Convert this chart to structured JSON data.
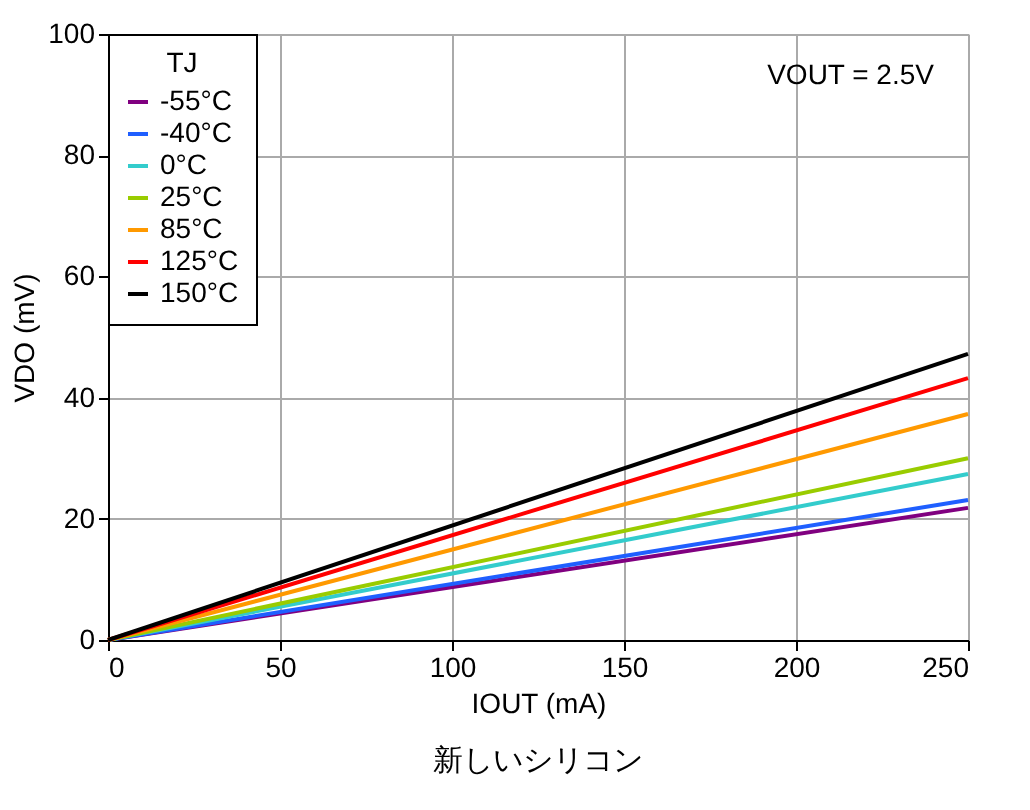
{
  "chart_data": {
    "type": "line",
    "xlabel": "IOUT (mA)",
    "ylabel": "VDO (mV)",
    "legend_title": "TJ",
    "x": [
      0,
      250
    ],
    "series": [
      {
        "name": "-55°C",
        "color": "#800080",
        "values": [
          0,
          21.8
        ]
      },
      {
        "name": "-40°C",
        "color": "#1f5fff",
        "values": [
          0,
          23.1
        ]
      },
      {
        "name": "0°C",
        "color": "#33cccc",
        "values": [
          0,
          27.4
        ]
      },
      {
        "name": "25°C",
        "color": "#99cc00",
        "values": [
          0,
          30.0
        ]
      },
      {
        "name": "85°C",
        "color": "#ff9900",
        "values": [
          0,
          37.3
        ]
      },
      {
        "name": "125°C",
        "color": "#ff0000",
        "values": [
          0,
          43.2
        ]
      },
      {
        "name": "150°C",
        "color": "#000000",
        "values": [
          0,
          47.2
        ]
      }
    ],
    "xlim": [
      0,
      250
    ],
    "xticks": [
      0,
      50,
      100,
      150,
      200,
      250
    ],
    "ylim": [
      0,
      100
    ],
    "yticks": [
      0,
      20,
      40,
      60,
      80,
      100
    ],
    "grid": true,
    "legend": "top left",
    "marker": "none",
    "line_style": "solid",
    "annotations": [
      "VOUT = 2.5V",
      "新しいシリコン"
    ]
  }
}
